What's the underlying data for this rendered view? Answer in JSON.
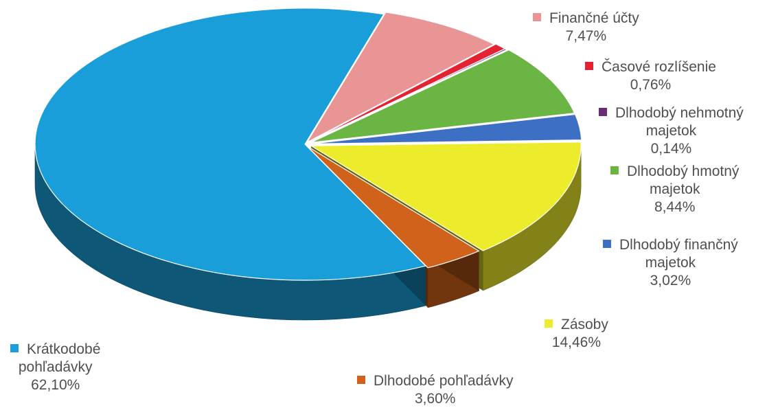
{
  "chart_data": {
    "type": "pie",
    "style": "3d-exploded",
    "legend_placement": "labels-around-slices",
    "slices": [
      {
        "name": "Finančné účty",
        "value_label": "7,47%",
        "value": 7.47,
        "color": "#ea9595"
      },
      {
        "name": "Časové rozlíšenie",
        "value_label": "0,76%",
        "value": 0.76,
        "color": "#e52232"
      },
      {
        "name": "Dlhodobý nehmotný majetok",
        "value_label": "0,14%",
        "value": 0.14,
        "color": "#6a2b78"
      },
      {
        "name": "Dlhodobý hmotný majetok",
        "value_label": "8,44%",
        "value": 8.44,
        "color": "#6ab543"
      },
      {
        "name": "Dlhodobý finančný majetok",
        "value_label": "3,02%",
        "value": 3.02,
        "color": "#3d6fc4"
      },
      {
        "name": "Zásoby",
        "value_label": "14,46%",
        "value": 14.46,
        "color": "#ecec2c"
      },
      {
        "name": "Dlhodobé pohľadávky",
        "value_label": "3,60%",
        "value": 3.6,
        "color": "#d0621b"
      },
      {
        "name": "Krátkodobé pohľadávky",
        "value_label": "62,10%",
        "value": 62.1,
        "color": "#1a9ed9"
      }
    ]
  },
  "labels": {
    "fin": {
      "l1": "Finančné účty",
      "l2": "7,47%"
    },
    "cas": {
      "l1": "Časové rozlíšenie",
      "l2": "0,76%"
    },
    "neh": {
      "l1": "Dlhodobý nehmotný",
      "l2": "majetok",
      "l3": "0,14%"
    },
    "hmo": {
      "l1": "Dlhodobý hmotný",
      "l2": "majetok",
      "l3": "8,44%"
    },
    "fn": {
      "l1": "Dlhodobý finančný",
      "l2": "majetok",
      "l3": "3,02%"
    },
    "zas": {
      "l1": "Zásoby",
      "l2": "14,46%"
    },
    "dpo": {
      "l1": "Dlhodobé pohľadávky",
      "l2": "3,60%"
    },
    "kra": {
      "l1": "Krátkodobé",
      "l2": "pohľadávky",
      "l3": "62,10%"
    }
  }
}
